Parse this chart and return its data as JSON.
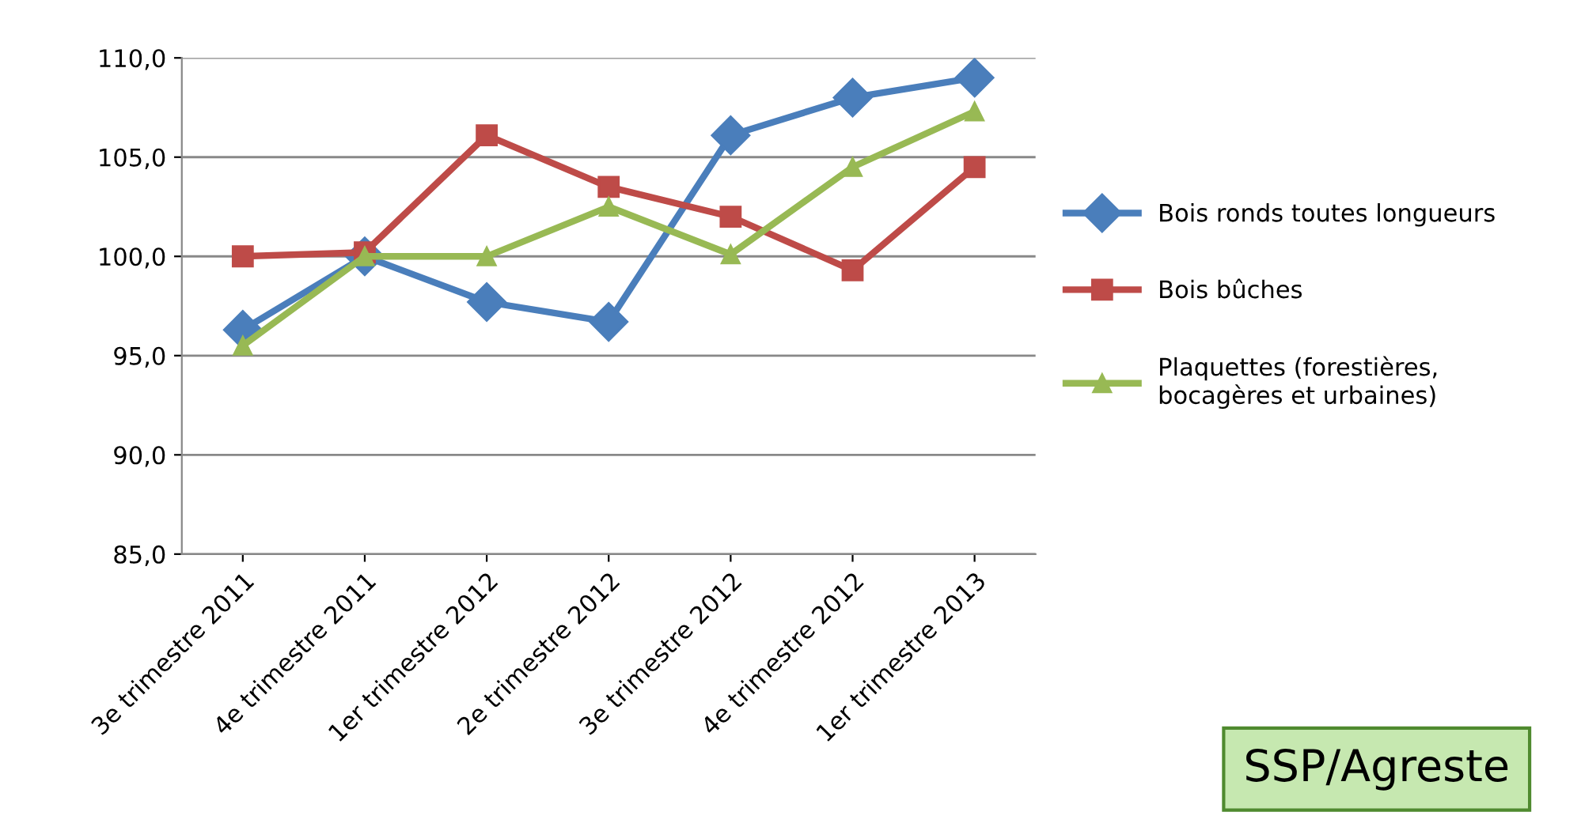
{
  "chart_data": {
    "type": "line",
    "categories": [
      "3e trimestre 2011",
      "4e trimestre 2011",
      "1er trimestre 2012",
      "2e trimestre 2012",
      "3e trimestre 2012",
      "4e trimestre 2012",
      "1er trimestre 2013"
    ],
    "series": [
      {
        "name": "Bois ronds toutes longueurs",
        "color": "#4a7ebb",
        "marker": "diamond",
        "values": [
          96.3,
          100.0,
          97.7,
          96.7,
          106.1,
          108.0,
          109.0
        ]
      },
      {
        "name": "Bois bûches",
        "color": "#be4b48",
        "marker": "square",
        "values": [
          100.0,
          100.2,
          106.1,
          103.5,
          102.0,
          99.3,
          104.5
        ]
      },
      {
        "name": "Plaquettes (forestières,\nbocagères et urbaines)",
        "color": "#98b954",
        "marker": "triangle",
        "values": [
          95.5,
          100.0,
          100.0,
          102.5,
          100.1,
          104.5,
          107.3
        ]
      }
    ],
    "ylim": [
      85,
      110
    ],
    "yticks": [
      {
        "value": 85,
        "label": "85,0"
      },
      {
        "value": 90,
        "label": "90,0"
      },
      {
        "value": 95,
        "label": "95,0"
      },
      {
        "value": 100,
        "label": "100,0"
      },
      {
        "value": 105,
        "label": "105,0"
      },
      {
        "value": 110,
        "label": "110,0"
      }
    ],
    "grid": "y",
    "legend": "right",
    "annotations": [
      "SSP/Agreste"
    ]
  }
}
